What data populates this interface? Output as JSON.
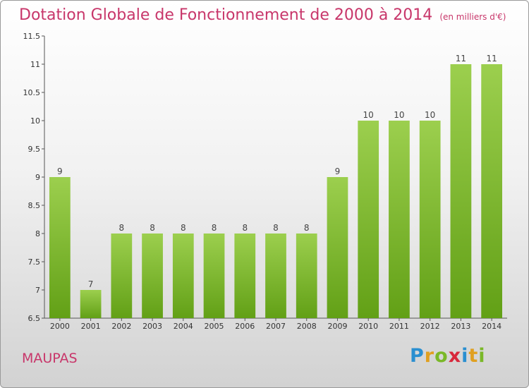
{
  "title": "Dotation Globale de Fonctionnement de 2000 à 2014",
  "unit": "(en milliers d'€)",
  "commune": "MAUPAS",
  "logo": {
    "text": "Proxiti",
    "letters": [
      {
        "ch": "P",
        "color": "#2a8fd0"
      },
      {
        "ch": "r",
        "color": "#e0a020"
      },
      {
        "ch": "o",
        "color": "#7ab828"
      },
      {
        "ch": "x",
        "color": "#d8283c"
      },
      {
        "ch": "i",
        "color": "#2a8fd0"
      },
      {
        "ch": "t",
        "color": "#e0a020"
      },
      {
        "ch": "i",
        "color": "#7ab828"
      }
    ]
  },
  "colors": {
    "bar_top": "#9ccf4e",
    "bar_bottom": "#62a016",
    "title": "#c8366a"
  },
  "chart_data": {
    "type": "bar",
    "title": "Dotation Globale de Fonctionnement de 2000 à 2014",
    "xlabel": "",
    "ylabel": "",
    "categories": [
      "2000",
      "2001",
      "2002",
      "2003",
      "2004",
      "2005",
      "2006",
      "2007",
      "2008",
      "2009",
      "2010",
      "2011",
      "2012",
      "2013",
      "2014"
    ],
    "values": [
      9,
      7,
      8,
      8,
      8,
      8,
      8,
      8,
      8,
      9,
      10,
      10,
      10,
      11,
      11
    ],
    "ylim": [
      6.5,
      11.5
    ],
    "yticks": [
      "6.5",
      "7",
      "7.5",
      "8",
      "8.5",
      "9",
      "9.5",
      "10",
      "10.5",
      "11",
      "11.5"
    ],
    "grid": false,
    "legend": "none"
  }
}
